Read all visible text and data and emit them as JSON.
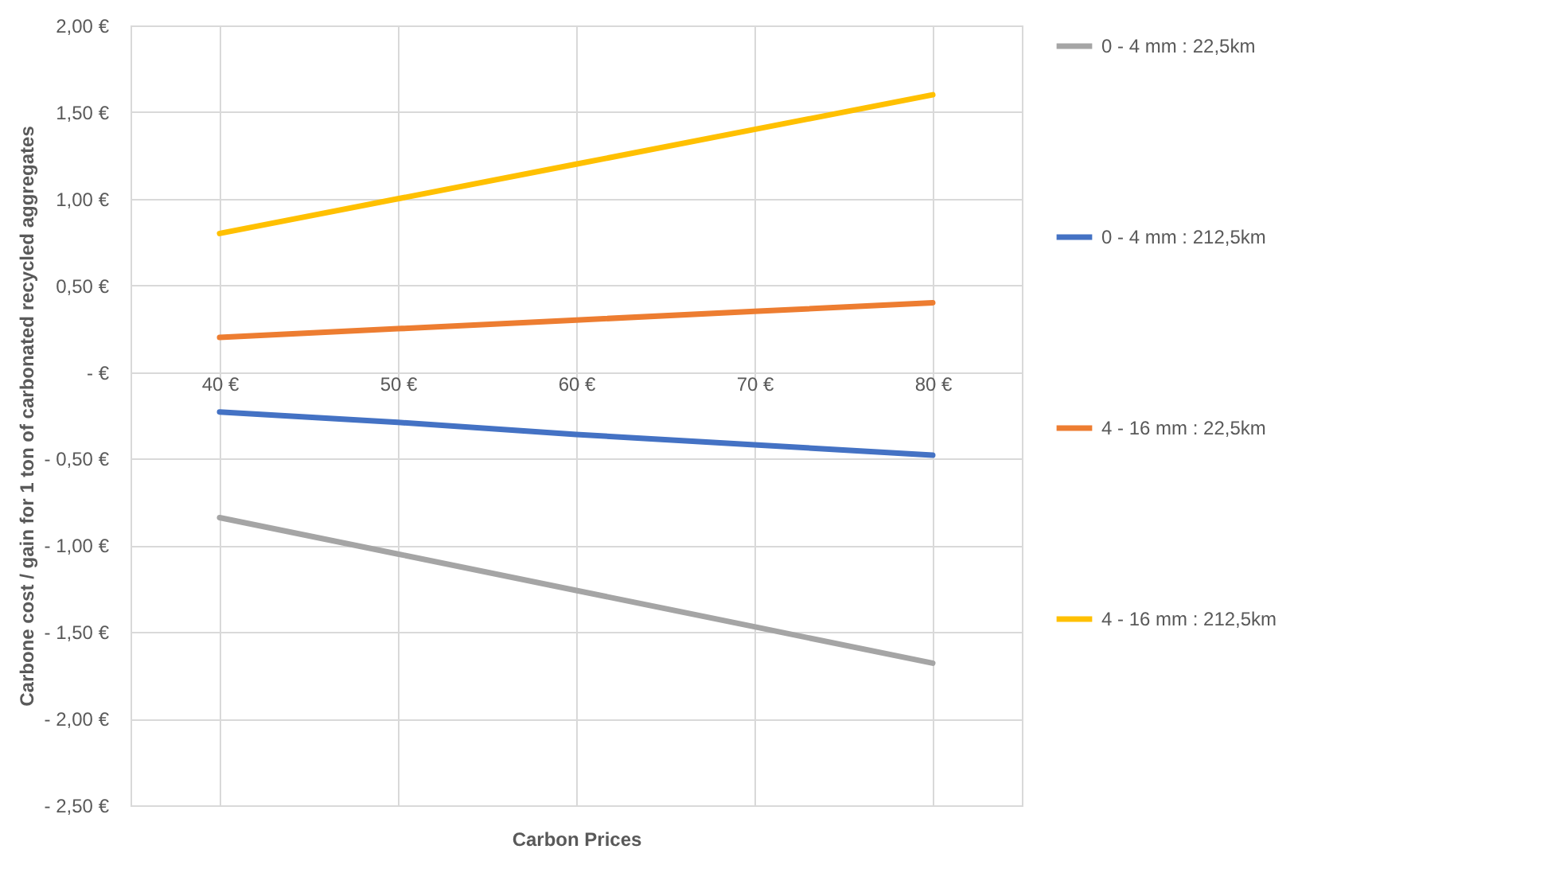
{
  "chart_data": {
    "type": "line",
    "ylabel": "Carbone cost / gain for 1 ton of carbonated recycled aggregates",
    "xlabel": "Carbon Prices",
    "categories": [
      "40 €",
      "50 €",
      "60 €",
      "70 €",
      "80 €"
    ],
    "series": [
      {
        "name": "0 - 4 mm : 22,5km",
        "color": "#a5a5a5",
        "values": [
          -0.84,
          -1.05,
          -1.26,
          -1.47,
          -1.68
        ]
      },
      {
        "name": "0 - 4 mm : 212,5km",
        "color": "#4472c4",
        "values": [
          -0.23,
          -0.29,
          -0.36,
          -0.42,
          -0.48
        ]
      },
      {
        "name": "4 - 16 mm : 22,5km",
        "color": "#ed7d31",
        "values": [
          0.2,
          0.25,
          0.3,
          0.35,
          0.4
        ]
      },
      {
        "name": "4 - 16 mm : 212,5km",
        "color": "#ffc000",
        "values": [
          0.8,
          1.0,
          1.2,
          1.4,
          1.6
        ]
      }
    ],
    "ylim": [
      -2.5,
      2
    ],
    "yticks": [
      {
        "value": -2.5,
        "label": "- 2,50 €"
      },
      {
        "value": -2,
        "label": "- 2,00 €"
      },
      {
        "value": -1.5,
        "label": "- 1,50 €"
      },
      {
        "value": -1,
        "label": "- 1,00 €"
      },
      {
        "value": -0.5,
        "label": "- 0,50 €"
      },
      {
        "value": 0,
        "label": "-   €"
      },
      {
        "value": 0.5,
        "label": "0,50 €"
      },
      {
        "value": 1,
        "label": "1,00 €"
      },
      {
        "value": 1.5,
        "label": "1,50 €"
      },
      {
        "value": 2,
        "label": "2,00 €"
      }
    ],
    "grid": true,
    "legend": "right",
    "line_style": "solid"
  }
}
